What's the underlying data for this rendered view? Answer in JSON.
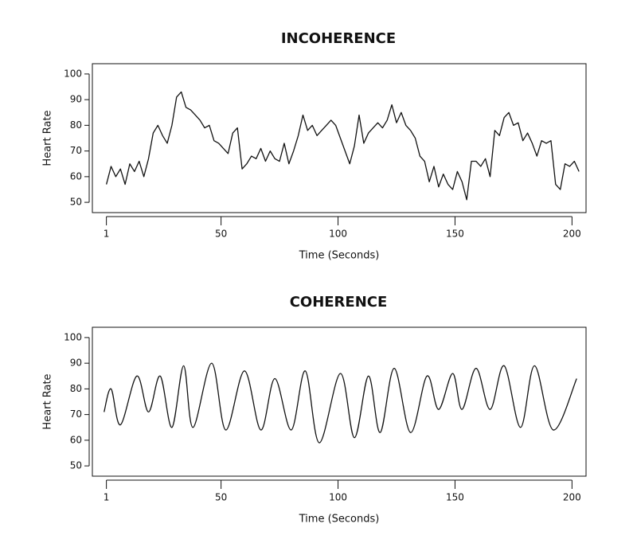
{
  "chart_data": [
    {
      "type": "line",
      "title": "INCOHERENCE",
      "xlabel": "Time (Seconds)",
      "ylabel": "Heart Rate",
      "x": [
        1,
        3,
        5,
        7,
        9,
        11,
        13,
        15,
        17,
        19,
        21,
        23,
        25,
        27,
        29,
        31,
        33,
        35,
        37,
        39,
        41,
        43,
        45,
        47,
        49,
        51,
        53,
        55,
        57,
        59,
        61,
        63,
        65,
        67,
        69,
        71,
        73,
        75,
        77,
        79,
        81,
        83,
        85,
        87,
        89,
        91,
        93,
        95,
        97,
        99,
        101,
        103,
        105,
        107,
        109,
        111,
        113,
        115,
        117,
        119,
        121,
        123,
        125,
        127,
        129,
        131,
        133,
        135,
        137,
        139,
        141,
        143,
        145,
        147,
        149,
        151,
        153,
        155,
        157,
        159,
        161,
        163,
        165,
        167,
        169,
        171,
        173,
        175,
        177,
        179,
        181,
        183,
        185,
        187,
        189,
        191,
        193,
        195,
        197,
        199,
        201,
        203
      ],
      "series": [
        {
          "name": "Heart Rate",
          "color": "#111111",
          "values": [
            57,
            64,
            60,
            63,
            57,
            65,
            62,
            66,
            60,
            67,
            77,
            80,
            76,
            73,
            80,
            91,
            93,
            87,
            86,
            84,
            82,
            79,
            80,
            74,
            73,
            71,
            69,
            77,
            79,
            63,
            65,
            68,
            67,
            71,
            66,
            70,
            67,
            66,
            73,
            65,
            70,
            76,
            84,
            78,
            80,
            76,
            78,
            80,
            82,
            80,
            75,
            70,
            65,
            72,
            84,
            73,
            77,
            79,
            81,
            79,
            82,
            88,
            81,
            85,
            80,
            78,
            75,
            68,
            66,
            58,
            64,
            56,
            61,
            57,
            55,
            62,
            58,
            51,
            66,
            66,
            64,
            67,
            60,
            78,
            76,
            83,
            85,
            80,
            81,
            74,
            77,
            73,
            68,
            74,
            73,
            74,
            57,
            55,
            65,
            64,
            66,
            62
          ]
        }
      ],
      "xlim": [
        -5,
        206
      ],
      "xticks": [
        1,
        50,
        100,
        150,
        200
      ],
      "ylim": [
        46,
        104
      ],
      "yticks": [
        50,
        60,
        70,
        80,
        90,
        100
      ]
    },
    {
      "type": "line",
      "title": "COHERENCE",
      "xlabel": "Time (Seconds)",
      "ylabel": "Heart Rate",
      "x": [
        0,
        3,
        7,
        14,
        19,
        24,
        29,
        34,
        38,
        46,
        52,
        60,
        67,
        73,
        80,
        86,
        92,
        101,
        107,
        113,
        118,
        124,
        131,
        138,
        143,
        149,
        153,
        159,
        165,
        171,
        178,
        184,
        192,
        202
      ],
      "series": [
        {
          "name": "Heart Rate",
          "color": "#111111",
          "values": [
            71,
            80,
            66,
            85,
            71,
            85,
            65,
            89,
            65,
            90,
            64,
            87,
            64,
            84,
            64,
            87,
            59,
            86,
            61,
            85,
            63,
            88,
            63,
            85,
            72,
            86,
            72,
            88,
            72,
            89,
            65,
            89,
            64,
            84
          ]
        }
      ],
      "smooth": true,
      "xlim": [
        -5,
        206
      ],
      "xticks": [
        1,
        50,
        100,
        150,
        200
      ],
      "ylim": [
        46,
        104
      ],
      "yticks": [
        50,
        60,
        70,
        80,
        90,
        100
      ]
    }
  ]
}
